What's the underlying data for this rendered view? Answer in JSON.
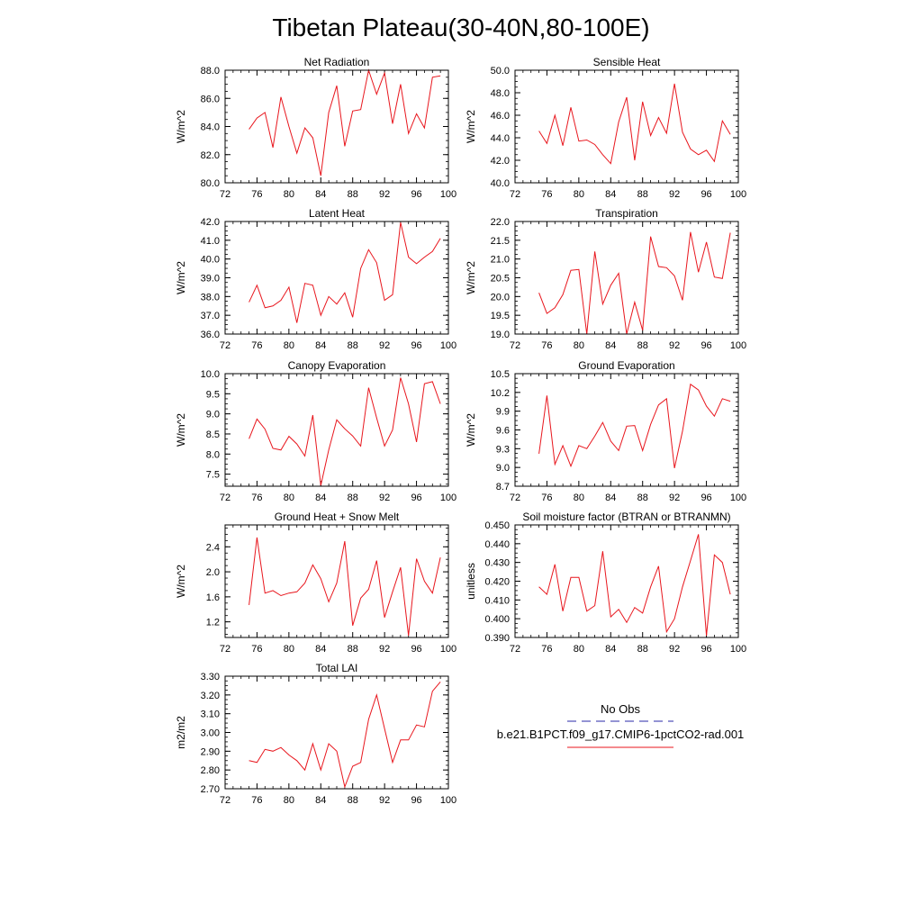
{
  "title": "Tibetan Plateau(30-40N,80-100E)",
  "colors": {
    "model_line": "#e8161d",
    "obs_line": "#2a2aa8",
    "frame": "#000000"
  },
  "legend": {
    "obs_label": "No Obs",
    "model_label": "b.e21.B1PCT.f09_g17.CMIP6-1pctCO2-rad.001"
  },
  "chart_data": [
    {
      "type": "line",
      "title": "Net Radiation",
      "ylabel": "W/m^2",
      "xlim": [
        72,
        100
      ],
      "ylim": [
        80.0,
        88.0
      ],
      "xticks": [
        "72",
        "76",
        "80",
        "84",
        "88",
        "92",
        "96",
        "100"
      ],
      "yticks": [
        "80.0",
        "82.0",
        "84.0",
        "86.0",
        "88.0"
      ],
      "x": [
        75,
        76,
        77,
        78,
        79,
        80,
        81,
        82,
        83,
        84,
        85,
        86,
        87,
        88,
        89,
        90,
        91,
        92,
        93,
        94,
        95,
        96,
        97,
        98,
        99
      ],
      "series": [
        {
          "values": [
            83.8,
            84.6,
            85.0,
            82.5,
            86.1,
            84.0,
            82.1,
            83.9,
            83.2,
            80.5,
            85.0,
            86.9,
            82.6,
            85.1,
            85.2,
            88.0,
            86.3,
            87.8,
            84.2,
            87.0,
            83.5,
            84.9,
            83.9,
            87.5,
            87.6
          ]
        }
      ]
    },
    {
      "type": "line",
      "title": "Sensible Heat",
      "ylabel": "W/m^2",
      "xlim": [
        72,
        100
      ],
      "ylim": [
        40.0,
        50.0
      ],
      "xticks": [
        "72",
        "76",
        "80",
        "84",
        "88",
        "92",
        "96",
        "100"
      ],
      "yticks": [
        "40.0",
        "42.0",
        "44.0",
        "46.0",
        "48.0",
        "50.0"
      ],
      "x": [
        75,
        76,
        77,
        78,
        79,
        80,
        81,
        82,
        83,
        84,
        85,
        86,
        87,
        88,
        89,
        90,
        91,
        92,
        93,
        94,
        95,
        96,
        97,
        98,
        99
      ],
      "series": [
        {
          "values": [
            44.6,
            43.5,
            46.0,
            43.3,
            46.7,
            43.7,
            43.8,
            43.4,
            42.5,
            41.7,
            45.4,
            47.6,
            42.0,
            47.2,
            44.2,
            45.8,
            44.4,
            48.8,
            44.5,
            43.0,
            42.5,
            42.9,
            41.9,
            45.5,
            44.3
          ]
        }
      ]
    },
    {
      "type": "line",
      "title": "Latent Heat",
      "ylabel": "W/m^2",
      "xlim": [
        72,
        100
      ],
      "ylim": [
        36.0,
        42.0
      ],
      "xticks": [
        "72",
        "76",
        "80",
        "84",
        "88",
        "92",
        "96",
        "100"
      ],
      "yticks": [
        "36.0",
        "37.0",
        "38.0",
        "39.0",
        "40.0",
        "41.0",
        "42.0"
      ],
      "x": [
        75,
        76,
        77,
        78,
        79,
        80,
        81,
        82,
        83,
        84,
        85,
        86,
        87,
        88,
        89,
        90,
        91,
        92,
        93,
        94,
        95,
        96,
        97,
        98,
        99
      ],
      "series": [
        {
          "values": [
            37.7,
            38.6,
            37.4,
            37.5,
            37.8,
            38.5,
            36.6,
            38.7,
            38.6,
            37.0,
            38.0,
            37.6,
            38.2,
            36.9,
            39.5,
            40.5,
            39.8,
            37.8,
            38.1,
            41.95,
            40.1,
            39.75,
            40.1,
            40.4,
            41.1
          ]
        }
      ]
    },
    {
      "type": "line",
      "title": "Transpiration",
      "ylabel": "W/m^2",
      "xlim": [
        72,
        100
      ],
      "ylim": [
        19.0,
        22.0
      ],
      "xticks": [
        "72",
        "76",
        "80",
        "84",
        "88",
        "92",
        "96",
        "100"
      ],
      "yticks": [
        "19.0",
        "19.5",
        "20.0",
        "20.5",
        "21.0",
        "21.5",
        "22.0"
      ],
      "x": [
        75,
        76,
        77,
        78,
        79,
        80,
        81,
        82,
        83,
        84,
        85,
        86,
        87,
        88,
        89,
        90,
        91,
        92,
        93,
        94,
        95,
        96,
        97,
        98,
        99
      ],
      "series": [
        {
          "values": [
            20.1,
            19.55,
            19.7,
            20.05,
            20.7,
            20.72,
            19.0,
            21.2,
            19.8,
            20.3,
            20.62,
            19.0,
            19.85,
            19.1,
            21.6,
            20.8,
            20.77,
            20.55,
            19.9,
            21.72,
            20.65,
            21.45,
            20.52,
            20.48,
            21.7
          ]
        }
      ]
    },
    {
      "type": "line",
      "title": "Canopy Evaporation",
      "ylabel": "W/m^2",
      "xlim": [
        72,
        100
      ],
      "ylim": [
        7.2,
        10.0
      ],
      "xticks": [
        "72",
        "76",
        "80",
        "84",
        "88",
        "92",
        "96",
        "100"
      ],
      "yticks": [
        "7.5",
        "8.0",
        "8.5",
        "9.0",
        "9.5",
        "10.0"
      ],
      "x": [
        75,
        76,
        77,
        78,
        79,
        80,
        81,
        82,
        83,
        84,
        85,
        86,
        87,
        88,
        89,
        90,
        91,
        92,
        93,
        94,
        95,
        96,
        97,
        98,
        99
      ],
      "series": [
        {
          "values": [
            8.38,
            8.87,
            8.62,
            8.14,
            8.1,
            8.44,
            8.25,
            7.95,
            8.97,
            7.22,
            8.1,
            8.85,
            8.63,
            8.45,
            8.2,
            9.65,
            8.9,
            8.2,
            8.6,
            9.9,
            9.25,
            8.3,
            9.75,
            9.8,
            9.25
          ]
        }
      ]
    },
    {
      "type": "line",
      "title": "Ground Evaporation",
      "ylabel": "W/m^2",
      "xlim": [
        72,
        100
      ],
      "ylim": [
        8.7,
        10.5
      ],
      "xticks": [
        "72",
        "76",
        "80",
        "84",
        "88",
        "92",
        "96",
        "100"
      ],
      "yticks": [
        "8.7",
        "9.0",
        "9.3",
        "9.6",
        "9.9",
        "10.2",
        "10.5"
      ],
      "x": [
        75,
        76,
        77,
        78,
        79,
        80,
        81,
        82,
        83,
        84,
        85,
        86,
        87,
        88,
        89,
        90,
        91,
        92,
        93,
        94,
        95,
        96,
        97,
        98,
        99
      ],
      "series": [
        {
          "values": [
            9.22,
            10.15,
            9.05,
            9.35,
            9.02,
            9.35,
            9.3,
            9.5,
            9.72,
            9.42,
            9.27,
            9.66,
            9.67,
            9.27,
            9.69,
            10.0,
            10.1,
            8.99,
            9.58,
            10.33,
            10.24,
            9.98,
            9.82,
            10.1,
            10.06
          ]
        }
      ]
    },
    {
      "type": "line",
      "title": "Ground Heat + Snow Melt",
      "ylabel": "W/m^2",
      "xlim": [
        72,
        100
      ],
      "ylim": [
        0.95,
        2.75
      ],
      "xticks": [
        "72",
        "76",
        "80",
        "84",
        "88",
        "92",
        "96",
        "100"
      ],
      "yticks": [
        "1.2",
        "1.6",
        "2.0",
        "2.4"
      ],
      "x": [
        75,
        76,
        77,
        78,
        79,
        80,
        81,
        82,
        83,
        84,
        85,
        86,
        87,
        88,
        89,
        90,
        91,
        92,
        93,
        94,
        95,
        96,
        97,
        98,
        99
      ],
      "series": [
        {
          "values": [
            1.47,
            2.55,
            1.66,
            1.7,
            1.62,
            1.66,
            1.68,
            1.82,
            2.11,
            1.89,
            1.52,
            1.82,
            2.49,
            1.14,
            1.58,
            1.72,
            2.18,
            1.27,
            1.68,
            2.07,
            0.98,
            2.21,
            1.85,
            1.66,
            2.23
          ]
        }
      ]
    },
    {
      "type": "line",
      "title": "Soil moisture factor (BTRAN or BTRANMN)",
      "ylabel": "unitless",
      "xlim": [
        72,
        100
      ],
      "ylim": [
        0.39,
        0.45
      ],
      "xticks": [
        "72",
        "76",
        "80",
        "84",
        "88",
        "92",
        "96",
        "100"
      ],
      "yticks": [
        "0.390",
        "0.400",
        "0.410",
        "0.420",
        "0.430",
        "0.440",
        "0.450"
      ],
      "x": [
        75,
        76,
        77,
        78,
        79,
        80,
        81,
        82,
        83,
        84,
        85,
        86,
        87,
        88,
        89,
        90,
        91,
        92,
        93,
        94,
        95,
        96,
        97,
        98,
        99
      ],
      "series": [
        {
          "values": [
            0.417,
            0.413,
            0.429,
            0.404,
            0.422,
            0.422,
            0.404,
            0.407,
            0.436,
            0.401,
            0.405,
            0.398,
            0.406,
            0.403,
            0.417,
            0.428,
            0.393,
            0.4,
            0.417,
            0.431,
            0.445,
            0.391,
            0.434,
            0.43,
            0.413
          ]
        }
      ]
    },
    {
      "type": "line",
      "title": "Total LAI",
      "ylabel": "m2/m2",
      "xlim": [
        72,
        100
      ],
      "ylim": [
        2.7,
        3.3
      ],
      "xticks": [
        "72",
        "76",
        "80",
        "84",
        "88",
        "92",
        "96",
        "100"
      ],
      "yticks": [
        "2.70",
        "2.80",
        "2.90",
        "3.00",
        "3.10",
        "3.20",
        "3.30"
      ],
      "x": [
        75,
        76,
        77,
        78,
        79,
        80,
        81,
        82,
        83,
        84,
        85,
        86,
        87,
        88,
        89,
        90,
        91,
        92,
        93,
        94,
        95,
        96,
        97,
        98,
        99
      ],
      "series": [
        {
          "values": [
            2.85,
            2.84,
            2.91,
            2.9,
            2.92,
            2.88,
            2.85,
            2.8,
            2.94,
            2.8,
            2.94,
            2.9,
            2.71,
            2.82,
            2.84,
            3.07,
            3.2,
            3.02,
            2.84,
            2.96,
            2.96,
            3.04,
            3.03,
            3.22,
            3.27
          ]
        }
      ]
    }
  ]
}
